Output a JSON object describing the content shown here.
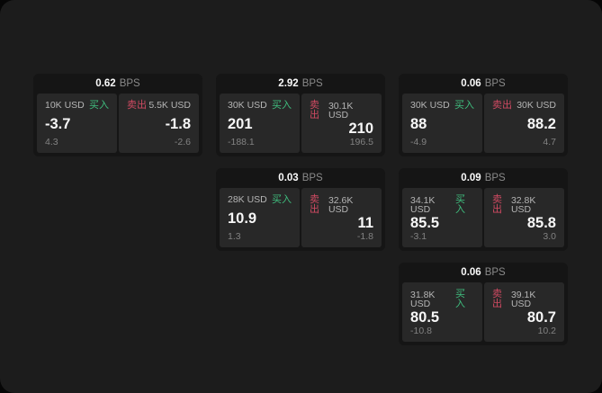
{
  "labels": {
    "bps": "BPS",
    "buy": "买入",
    "sell": "卖出"
  },
  "colors": {
    "page_bg": "#060606",
    "window_bg": "#1c1c1c",
    "card_bg": "#151515",
    "panel_bg": "#282828",
    "buy_green": "#3fbe7e",
    "sell_red": "#d04a62",
    "value_white": "#fafafa",
    "muted_gray": "#8a8a8a"
  },
  "cards": [
    {
      "bps": "0.62",
      "buy": {
        "size": "10K USD",
        "price": "-3.7",
        "delta": "4.3"
      },
      "sell": {
        "size": "5.5K USD",
        "price": "-1.8",
        "delta": "-2.6"
      }
    },
    {
      "bps": "2.92",
      "buy": {
        "size": "30K USD",
        "price": "201",
        "delta": "-188.1"
      },
      "sell": {
        "size": "30.1K USD",
        "price": "210",
        "delta": "196.5"
      }
    },
    {
      "bps": "0.06",
      "buy": {
        "size": "30K USD",
        "price": "88",
        "delta": "-4.9"
      },
      "sell": {
        "size": "30K USD",
        "price": "88.2",
        "delta": "4.7"
      }
    },
    {
      "bps": "0.03",
      "buy": {
        "size": "28K USD",
        "price": "10.9",
        "delta": "1.3"
      },
      "sell": {
        "size": "32.6K USD",
        "price": "11",
        "delta": "-1.8"
      }
    },
    {
      "bps": "0.09",
      "buy": {
        "size": "34.1K USD",
        "price": "85.5",
        "delta": "-3.1"
      },
      "sell": {
        "size": "32.8K USD",
        "price": "85.8",
        "delta": "3.0"
      }
    },
    {
      "bps": "0.06",
      "buy": {
        "size": "31.8K USD",
        "price": "80.5",
        "delta": "-10.8"
      },
      "sell": {
        "size": "39.1K USD",
        "price": "80.7",
        "delta": "10.2"
      }
    }
  ]
}
